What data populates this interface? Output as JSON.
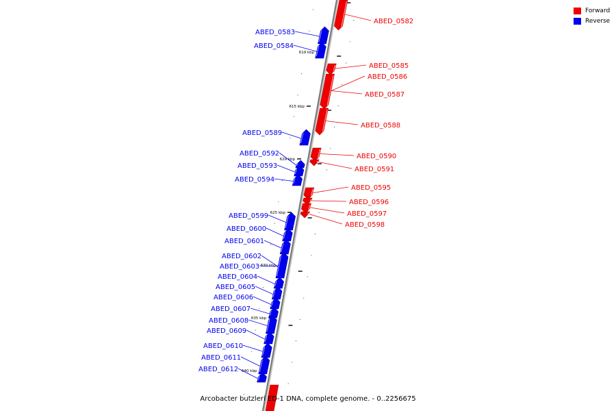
{
  "legend": {
    "forward_label": "Forward",
    "reverse_label": "Reverse",
    "forward_color": "#ee0000",
    "reverse_color": "#0000ee"
  },
  "caption": "Arcobacter butzleri ED-1 DNA, complete genome. - 0..2256675",
  "ticks": [
    "610 kbp",
    "615 kbp",
    "620 kbp",
    "625 kbp",
    "630 kbp",
    "635 kbp",
    "640 kbp"
  ],
  "genes": [
    {
      "id": "ABED_0582",
      "strand": "forward"
    },
    {
      "id": "ABED_0583",
      "strand": "reverse"
    },
    {
      "id": "ABED_0584",
      "strand": "reverse"
    },
    {
      "id": "ABED_0585",
      "strand": "forward"
    },
    {
      "id": "ABED_0586",
      "strand": "forward"
    },
    {
      "id": "ABED_0587",
      "strand": "forward"
    },
    {
      "id": "ABED_0588",
      "strand": "forward"
    },
    {
      "id": "ABED_0589",
      "strand": "reverse"
    },
    {
      "id": "ABED_0590",
      "strand": "forward"
    },
    {
      "id": "ABED_0591",
      "strand": "forward"
    },
    {
      "id": "ABED_0592",
      "strand": "reverse"
    },
    {
      "id": "ABED_0593",
      "strand": "reverse"
    },
    {
      "id": "ABED_0594",
      "strand": "reverse"
    },
    {
      "id": "ABED_0595",
      "strand": "forward"
    },
    {
      "id": "ABED_0596",
      "strand": "forward"
    },
    {
      "id": "ABED_0597",
      "strand": "forward"
    },
    {
      "id": "ABED_0598",
      "strand": "forward"
    },
    {
      "id": "ABED_0599",
      "strand": "reverse"
    },
    {
      "id": "ABED_0600",
      "strand": "reverse"
    },
    {
      "id": "ABED_0601",
      "strand": "reverse"
    },
    {
      "id": "ABED_0602",
      "strand": "reverse"
    },
    {
      "id": "ABED_0603",
      "strand": "reverse"
    },
    {
      "id": "ABED_0604",
      "strand": "reverse"
    },
    {
      "id": "ABED_0605",
      "strand": "reverse"
    },
    {
      "id": "ABED_0606",
      "strand": "reverse"
    },
    {
      "id": "ABED_0607",
      "strand": "reverse"
    },
    {
      "id": "ABED_0608",
      "strand": "reverse"
    },
    {
      "id": "ABED_0609",
      "strand": "reverse"
    },
    {
      "id": "ABED_0610",
      "strand": "reverse"
    },
    {
      "id": "ABED_0611",
      "strand": "reverse"
    },
    {
      "id": "ABED_0612",
      "strand": "reverse"
    }
  ]
}
